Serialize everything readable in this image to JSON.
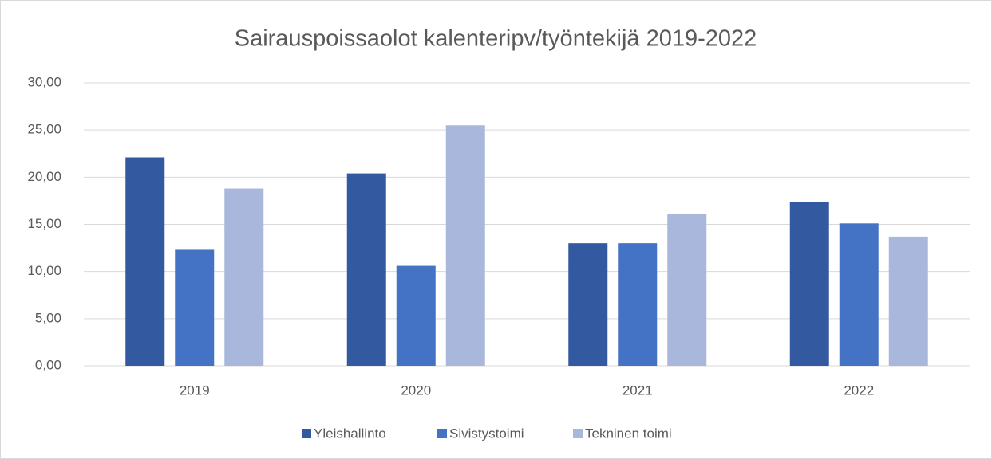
{
  "chart_data": {
    "type": "bar",
    "title": "Sairauspoissaolot kalenteripv/työntekijä 2019-2022",
    "categories": [
      "2019",
      "2020",
      "2021",
      "2022"
    ],
    "series": [
      {
        "name": "Yleishallinto",
        "color": "#335aa1",
        "values": [
          22.1,
          20.4,
          13.0,
          17.4
        ]
      },
      {
        "name": "Sivistystoimi",
        "color": "#4472c4",
        "values": [
          12.3,
          10.6,
          13.0,
          15.1
        ]
      },
      {
        "name": "Tekninen toimi",
        "color": "#a9b7dd",
        "values": [
          18.8,
          25.5,
          16.1,
          13.7
        ]
      }
    ],
    "ylim": [
      0,
      30
    ],
    "yticks": [
      {
        "value": 0,
        "label": "0,00"
      },
      {
        "value": 5,
        "label": "5,00"
      },
      {
        "value": 10,
        "label": "10,00"
      },
      {
        "value": 15,
        "label": "15,00"
      },
      {
        "value": 20,
        "label": "20,00"
      },
      {
        "value": 25,
        "label": "25,00"
      },
      {
        "value": 30,
        "label": "30,00"
      }
    ],
    "grid": true,
    "legend": "bottom"
  }
}
